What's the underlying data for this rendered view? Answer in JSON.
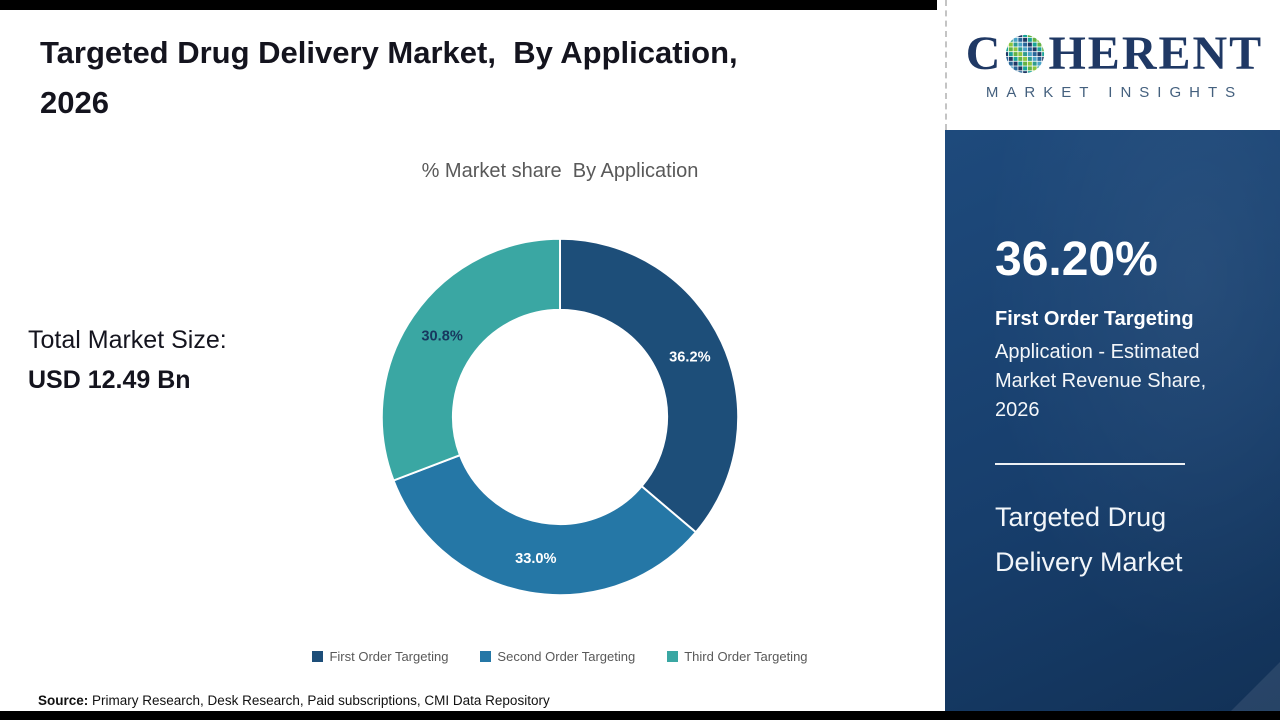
{
  "header": {
    "title_line1": "Targeted Drug Delivery Market,  By Application,",
    "title_line2": "2026"
  },
  "chart_data": {
    "type": "pie",
    "donut": true,
    "title": "% Market share  By Application",
    "labels": [
      "First Order Targeting",
      "Second Order Targeting",
      "Third Order Targeting"
    ],
    "values": [
      36.2,
      33.0,
      30.8
    ],
    "display_labels": [
      "36.2%",
      "33.0%",
      "30.8%"
    ],
    "colors": [
      "#1d4e79",
      "#2577a6",
      "#3aa7a3"
    ],
    "label_colors": [
      "#ffffff",
      "#ffffff",
      "#17375e"
    ],
    "legend_position": "bottom",
    "start_angle_deg": -90
  },
  "left_panel": {
    "total_label": "Total Market Size:",
    "total_value": "USD 12.49 Bn"
  },
  "source": {
    "label": "Source:",
    "text": "Primary Research, Desk Research, Paid subscriptions, CMI Data Repository"
  },
  "logo": {
    "part1": "C",
    "part2": "HERENT",
    "subtitle": "MARKET INSIGHTS"
  },
  "sidebar": {
    "stat_value": "36.20%",
    "stat_title": "First Order Targeting",
    "stat_desc": "Application - Estimated Market Revenue Share, 2026",
    "market_name": "Targeted Drug Delivery Market"
  }
}
